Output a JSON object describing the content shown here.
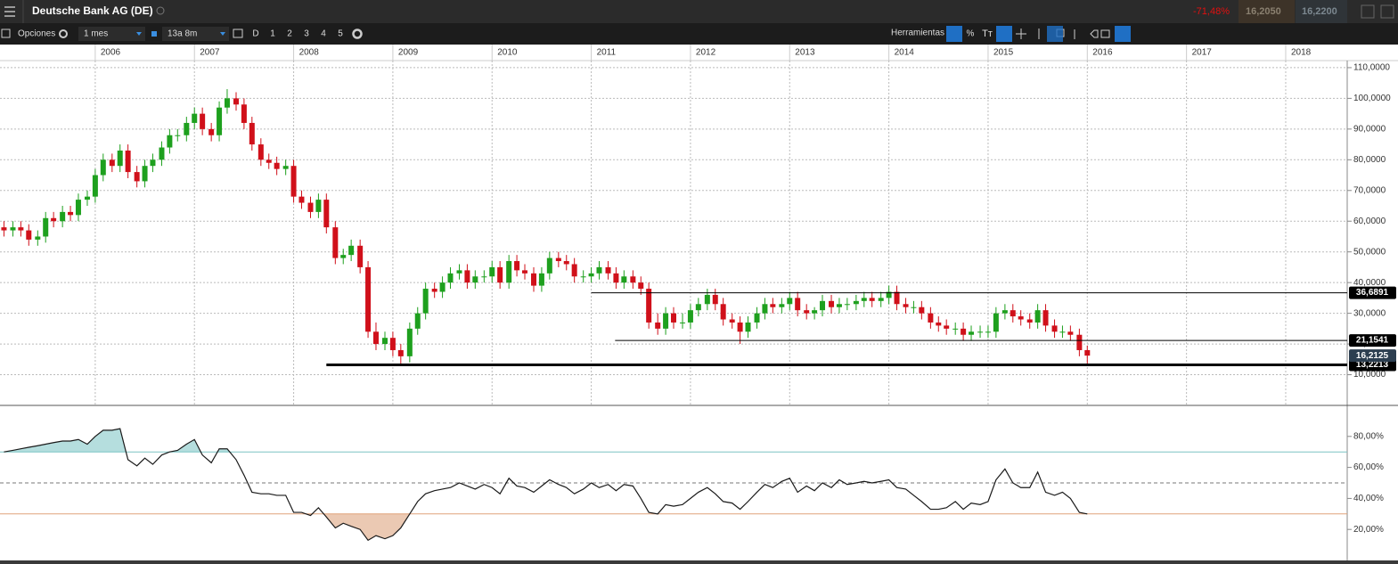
{
  "ui": {
    "header": {
      "title": "Deutsche Bank AG (DE)",
      "change": "-71,48%",
      "bid": "16,2050",
      "ask": "16,2200"
    },
    "toolbar": {
      "options": "Opciones",
      "interval": "1 mes",
      "range": "13a 8m",
      "periods": [
        "D",
        "1",
        "2",
        "3",
        "4",
        "5"
      ],
      "tools": "Herramientas",
      "percent": "%",
      "text": "Tт"
    }
  },
  "chart_data": [
    {
      "type": "candlestick",
      "xlim": [
        2005.04,
        2018.62
      ],
      "xticks": [
        2006,
        2007,
        2008,
        2009,
        2010,
        2011,
        2012,
        2013,
        2014,
        2015,
        2016,
        2017,
        2018
      ],
      "ylim": [
        0,
        112.3
      ],
      "yticks": [
        {
          "value": 10,
          "label": "10,0000"
        },
        {
          "value": 20,
          "label": "20,0000"
        },
        {
          "value": 30,
          "label": "30,0000"
        },
        {
          "value": 40,
          "label": "40,0000"
        },
        {
          "value": 50,
          "label": "50,0000"
        },
        {
          "value": 60,
          "label": "60,0000"
        },
        {
          "value": 70,
          "label": "70,0000"
        },
        {
          "value": 80,
          "label": "80,0000"
        },
        {
          "value": 90,
          "label": "90,0000"
        },
        {
          "value": 100,
          "label": "100,0000"
        },
        {
          "value": 110,
          "label": "110,0000"
        }
      ],
      "grid": true,
      "up_color": "#1ea01e",
      "down_color": "#d0101a",
      "x": [
        2005.08,
        2005.17,
        2005.25,
        2005.33,
        2005.42,
        2005.5,
        2005.58,
        2005.67,
        2005.75,
        2005.83,
        2005.92,
        2006,
        2006.08,
        2006.17,
        2006.25,
        2006.33,
        2006.42,
        2006.5,
        2006.58,
        2006.67,
        2006.75,
        2006.83,
        2006.92,
        2007,
        2007.08,
        2007.17,
        2007.25,
        2007.33,
        2007.42,
        2007.5,
        2007.58,
        2007.67,
        2007.75,
        2007.83,
        2007.92,
        2008,
        2008.08,
        2008.17,
        2008.25,
        2008.33,
        2008.42,
        2008.5,
        2008.58,
        2008.67,
        2008.75,
        2008.83,
        2008.92,
        2009,
        2009.08,
        2009.17,
        2009.25,
        2009.33,
        2009.42,
        2009.5,
        2009.58,
        2009.67,
        2009.75,
        2009.83,
        2009.92,
        2010,
        2010.08,
        2010.17,
        2010.25,
        2010.33,
        2010.42,
        2010.5,
        2010.58,
        2010.67,
        2010.75,
        2010.83,
        2010.92,
        2011,
        2011.08,
        2011.17,
        2011.25,
        2011.33,
        2011.42,
        2011.5,
        2011.58,
        2011.67,
        2011.75,
        2011.83,
        2011.92,
        2012,
        2012.08,
        2012.17,
        2012.25,
        2012.33,
        2012.42,
        2012.5,
        2012.58,
        2012.67,
        2012.75,
        2012.83,
        2012.92,
        2013,
        2013.08,
        2013.17,
        2013.25,
        2013.33,
        2013.42,
        2013.5,
        2013.58,
        2013.67,
        2013.75,
        2013.83,
        2013.92,
        2014,
        2014.08,
        2014.17,
        2014.25,
        2014.33,
        2014.42,
        2014.5,
        2014.58,
        2014.67,
        2014.75,
        2014.83,
        2014.92,
        2015,
        2015.08,
        2015.17,
        2015.25,
        2015.33,
        2015.42,
        2015.5,
        2015.58,
        2015.67,
        2015.75,
        2015.83,
        2015.92,
        2016
      ],
      "open": [
        58,
        57,
        58,
        57,
        54,
        55,
        61,
        60,
        63,
        62,
        67,
        68,
        75,
        80,
        78,
        83,
        76,
        73,
        78,
        80,
        84,
        88,
        88,
        92,
        95,
        90,
        88,
        97,
        100,
        98,
        92,
        85,
        80,
        79,
        77,
        78,
        68,
        66,
        63,
        67,
        58,
        48,
        49,
        52,
        45,
        24,
        20,
        22,
        18,
        16,
        25,
        30,
        38,
        37,
        40,
        43,
        44,
        40,
        42,
        42,
        45,
        40,
        47,
        44,
        43,
        39,
        43,
        48,
        47,
        46,
        42,
        42,
        43,
        45,
        43,
        40,
        42,
        40,
        38,
        27,
        25,
        30,
        27,
        27,
        31,
        33,
        36,
        33,
        28,
        27,
        24,
        27,
        30,
        33,
        32,
        33,
        35,
        31,
        30,
        31,
        34,
        32,
        33,
        33,
        34,
        35,
        34,
        35,
        37,
        33,
        32,
        32,
        30,
        27,
        26,
        25,
        25,
        23,
        24,
        24,
        24,
        30,
        31,
        29,
        28,
        27,
        31,
        26,
        24,
        24,
        23,
        18
      ],
      "high": [
        60,
        60,
        60,
        59,
        57,
        63,
        63,
        65,
        65,
        69,
        70,
        77,
        82,
        82,
        85,
        85,
        78,
        80,
        82,
        86,
        90,
        90,
        94,
        97,
        97,
        92,
        99,
        103,
        102,
        100,
        94,
        87,
        82,
        81,
        80,
        80,
        70,
        68,
        69,
        69,
        60,
        51,
        54,
        54,
        47,
        27,
        24,
        24,
        20,
        27,
        32,
        40,
        40,
        42,
        45,
        46,
        46,
        44,
        44,
        47,
        47,
        49,
        49,
        46,
        45,
        45,
        50,
        50,
        49,
        48,
        44,
        45,
        47,
        47,
        45,
        44,
        44,
        42,
        40,
        30,
        32,
        32,
        30,
        33,
        35,
        38,
        38,
        35,
        30,
        29,
        29,
        32,
        35,
        35,
        35,
        37,
        37,
        33,
        32,
        36,
        36,
        35,
        35,
        36,
        37,
        37,
        37,
        39,
        39,
        35,
        34,
        34,
        32,
        29,
        28,
        27,
        27,
        26,
        26,
        26,
        32,
        33,
        33,
        31,
        30,
        33,
        33,
        28,
        26,
        26,
        25,
        19.5
      ],
      "low": [
        55,
        55,
        55,
        52,
        52,
        53,
        58,
        58,
        60,
        60,
        65,
        66,
        73,
        76,
        76,
        74,
        71,
        71,
        76,
        78,
        82,
        86,
        86,
        90,
        88,
        86,
        86,
        95,
        96,
        90,
        83,
        78,
        77,
        75,
        75,
        66,
        64,
        61,
        61,
        56,
        46,
        46,
        47,
        43,
        22,
        18,
        18,
        16,
        13,
        14,
        23,
        28,
        35,
        35,
        38,
        41,
        38,
        38,
        40,
        40,
        38,
        38,
        42,
        41,
        37,
        37,
        41,
        45,
        44,
        40,
        40,
        40,
        41,
        41,
        38,
        38,
        38,
        36,
        25,
        23,
        23,
        25,
        25,
        25,
        29,
        31,
        31,
        26,
        25,
        20,
        22,
        25,
        28,
        30,
        30,
        31,
        29,
        28,
        28,
        29,
        30,
        30,
        31,
        31,
        32,
        32,
        32,
        33,
        31,
        30,
        30,
        28,
        25,
        24,
        23,
        23,
        21,
        21,
        22,
        22,
        22,
        28,
        27,
        26,
        25,
        25,
        24,
        22,
        22,
        21,
        16,
        13.3
      ],
      "close": [
        57,
        58,
        57,
        54,
        55,
        61,
        60,
        63,
        62,
        67,
        68,
        75,
        80,
        78,
        83,
        76,
        73,
        78,
        80,
        84,
        88,
        88,
        92,
        95,
        90,
        88,
        97,
        100,
        98,
        92,
        85,
        80,
        79,
        77,
        78,
        68,
        66,
        63,
        67,
        58,
        48,
        49,
        52,
        45,
        24,
        20,
        22,
        18,
        16,
        25,
        30,
        38,
        37,
        40,
        43,
        44,
        40,
        42,
        42,
        45,
        40,
        47,
        44,
        43,
        39,
        43,
        48,
        47,
        46,
        42,
        42,
        43,
        45,
        43,
        40,
        42,
        40,
        38,
        27,
        25,
        30,
        27,
        27,
        31,
        33,
        36,
        33,
        28,
        27,
        24,
        27,
        30,
        33,
        32,
        33,
        35,
        31,
        30,
        31,
        34,
        32,
        33,
        33,
        34,
        35,
        34,
        35,
        37,
        33,
        32,
        32,
        30,
        27,
        26,
        25,
        25,
        23,
        24,
        24,
        24,
        30,
        31,
        29,
        28,
        27,
        31,
        26,
        24,
        24,
        23,
        18,
        16.2125
      ],
      "levels": [
        {
          "value": 36.6891,
          "label": "36,6891",
          "start_x": 2011.0,
          "line_width": 1
        },
        {
          "value": 21.1541,
          "label": "21,1541",
          "start_x": 2011.24,
          "line_width": 1
        },
        {
          "value": 13.2213,
          "label": "13,2213",
          "start_x": 2008.33,
          "line_width": 3
        }
      ],
      "last_price": {
        "value": 16.2125,
        "label": "16,2125"
      }
    },
    {
      "type": "line",
      "ylim": [
        0,
        100
      ],
      "yticks": [
        {
          "value": 20,
          "label": "20,00%"
        },
        {
          "value": 40,
          "label": "40,00%"
        },
        {
          "value": 60,
          "label": "60,00%"
        },
        {
          "value": 80,
          "label": "80,00%"
        }
      ],
      "upper": 70,
      "middle": 50,
      "lower": 30,
      "upper_color": "#7cc4c4",
      "lower_color": "#e0a27a",
      "upper_fill": "#b5dede",
      "lower_fill": "#ebc9b3",
      "series": [
        {
          "color": "#1a1a1a",
          "values": [
            70,
            71,
            72,
            73,
            74,
            75,
            76,
            77,
            77,
            78,
            75,
            80,
            84,
            84,
            85,
            65,
            61,
            66,
            62,
            68,
            70,
            71,
            75,
            78,
            68,
            63,
            72,
            72,
            65,
            55,
            44,
            43,
            43,
            42,
            42,
            31,
            31,
            29,
            34,
            28,
            21,
            24,
            22,
            20,
            13,
            16,
            14,
            16,
            21,
            30,
            38,
            43,
            45,
            46,
            47,
            50,
            48,
            46,
            49,
            47,
            43,
            53,
            48,
            47,
            44,
            48,
            52,
            49,
            47,
            43,
            46,
            50,
            47,
            49,
            45,
            49,
            48,
            40,
            31,
            30,
            36,
            35,
            36,
            40,
            44,
            47,
            43,
            38,
            37,
            33,
            38,
            44,
            49,
            47,
            51,
            53,
            44,
            48,
            45,
            50,
            47,
            52,
            49,
            50,
            51,
            50,
            51,
            52,
            47,
            46,
            42,
            38,
            33,
            33,
            34,
            38,
            33,
            37,
            36,
            38,
            52,
            59,
            50,
            47,
            47,
            57,
            44,
            42,
            44,
            40,
            31,
            30
          ]
        }
      ]
    }
  ]
}
